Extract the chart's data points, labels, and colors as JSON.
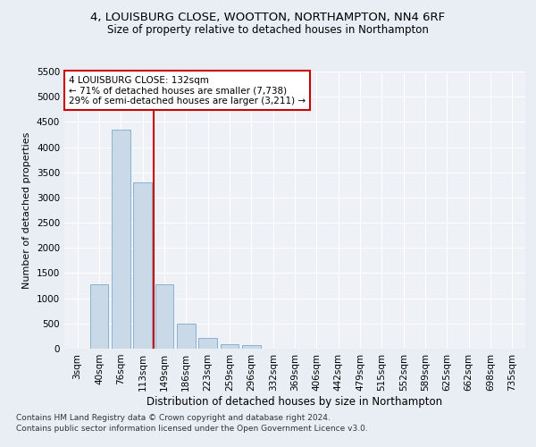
{
  "title": "4, LOUISBURG CLOSE, WOOTTON, NORTHAMPTON, NN4 6RF",
  "subtitle": "Size of property relative to detached houses in Northampton",
  "xlabel": "Distribution of detached houses by size in Northampton",
  "ylabel": "Number of detached properties",
  "footer_line1": "Contains HM Land Registry data © Crown copyright and database right 2024.",
  "footer_line2": "Contains public sector information licensed under the Open Government Licence v3.0.",
  "bar_labels": [
    "3sqm",
    "40sqm",
    "76sqm",
    "113sqm",
    "149sqm",
    "186sqm",
    "223sqm",
    "259sqm",
    "296sqm",
    "332sqm",
    "369sqm",
    "406sqm",
    "442sqm",
    "479sqm",
    "515sqm",
    "552sqm",
    "589sqm",
    "625sqm",
    "662sqm",
    "698sqm",
    "735sqm"
  ],
  "bar_values": [
    0,
    1270,
    4340,
    3300,
    1280,
    490,
    220,
    90,
    65,
    0,
    0,
    0,
    0,
    0,
    0,
    0,
    0,
    0,
    0,
    0,
    0
  ],
  "bar_color": "#c9d9e8",
  "bar_edge_color": "#7aaac8",
  "annotation_box_text": "4 LOUISBURG CLOSE: 132sqm\n← 71% of detached houses are smaller (7,738)\n29% of semi-detached houses are larger (3,211) →",
  "annotation_box_color": "#ffffff",
  "annotation_box_edge_color": "#cc0000",
  "ylim": [
    0,
    5500
  ],
  "yticks": [
    0,
    500,
    1000,
    1500,
    2000,
    2500,
    3000,
    3500,
    4000,
    4500,
    5000,
    5500
  ],
  "background_color": "#e8eef4",
  "plot_bg_color": "#eef2f7",
  "grid_color": "#ffffff",
  "title_fontsize": 9.5,
  "subtitle_fontsize": 8.5,
  "xlabel_fontsize": 8.5,
  "ylabel_fontsize": 8,
  "tick_fontsize": 7.5,
  "footer_fontsize": 6.5,
  "annotation_fontsize": 7.5
}
